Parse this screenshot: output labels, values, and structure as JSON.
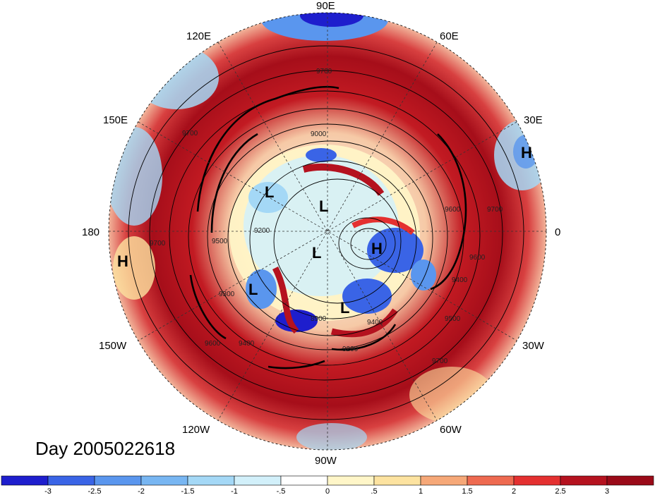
{
  "day_label": "Day 2005022618",
  "longitude_labels": {
    "lon_90e": "90E",
    "lon_60e": "60E",
    "lon_30e": "30E",
    "lon_0": "0",
    "lon_30w": "30W",
    "lon_60w": "60W",
    "lon_90w": "90W",
    "lon_120w": "120W",
    "lon_150w": "150W",
    "lon_180": "180",
    "lon_150e": "150E",
    "lon_120e": "120E"
  },
  "pressure_centers": [
    {
      "label": "H",
      "lon_note": "30E"
    },
    {
      "label": "H",
      "lon_note": "180"
    },
    {
      "label": "L"
    },
    {
      "label": "L"
    },
    {
      "label": "L"
    },
    {
      "label": "H"
    },
    {
      "label": "L"
    },
    {
      "label": "L"
    }
  ],
  "contour_labels": [
    "9700",
    "9700",
    "9700",
    "9600",
    "9500",
    "9400",
    "9300",
    "9200",
    "9000",
    "8900",
    "9400",
    "9500",
    "9600",
    "9700",
    "9600",
    "9700",
    "9400",
    "9200"
  ],
  "colorbar": {
    "tick_labels": [
      "-3",
      "-2.5",
      "-2",
      "-1.5",
      "-1",
      "-.5",
      "0",
      ".5",
      "1",
      "1.5",
      "2",
      "2.5",
      "3"
    ],
    "colors": [
      "#1e1ecd",
      "#3a64e6",
      "#5a96ee",
      "#78b6f2",
      "#a4d8f6",
      "#d2f0fa",
      "#ffffff",
      "#fff6c8",
      "#fde3a0",
      "#f6a878",
      "#ee6a50",
      "#e43030",
      "#b5121f",
      "#9a0a18"
    ]
  }
}
